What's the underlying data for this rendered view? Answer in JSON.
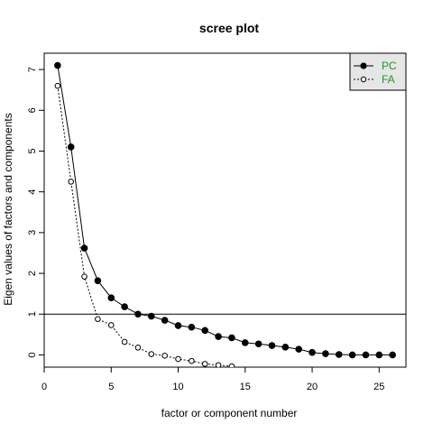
{
  "chart_data": {
    "type": "line",
    "title": "scree plot",
    "xlabel": "factor or component number",
    "ylabel": "Eigen values of factors and components",
    "xlim": [
      0,
      27
    ],
    "ylim": [
      -0.3,
      7.4
    ],
    "xticks": [
      0,
      5,
      10,
      15,
      20,
      25
    ],
    "yticks": [
      0,
      1,
      2,
      3,
      4,
      5,
      6,
      7
    ],
    "reference_line_y": 1,
    "legend": {
      "position": "top-right",
      "text_color": "#1a9a1a",
      "background": "#e6e6e6"
    },
    "series": [
      {
        "name": "PC",
        "line_style": "solid",
        "marker": "filled-circle",
        "x": [
          1,
          2,
          3,
          4,
          5,
          6,
          7,
          8,
          9,
          10,
          11,
          12,
          13,
          14,
          15,
          16,
          17,
          18,
          19,
          20,
          21,
          22,
          23,
          24,
          25,
          26
        ],
        "values": [
          7.1,
          5.1,
          2.62,
          1.82,
          1.4,
          1.18,
          1.0,
          0.95,
          0.85,
          0.72,
          0.68,
          0.6,
          0.45,
          0.42,
          0.3,
          0.27,
          0.23,
          0.19,
          0.14,
          0.06,
          0.03,
          0.01,
          0.0,
          0.0,
          0.0,
          0.0
        ]
      },
      {
        "name": "FA",
        "line_style": "dotted",
        "marker": "open-circle",
        "x": [
          1,
          2,
          3,
          4,
          5,
          6,
          7,
          8,
          9,
          10,
          11,
          12,
          13,
          14
        ],
        "values": [
          6.6,
          4.25,
          1.92,
          0.88,
          0.73,
          0.32,
          0.18,
          0.02,
          -0.02,
          -0.1,
          -0.15,
          -0.22,
          -0.25,
          -0.28
        ]
      }
    ]
  }
}
